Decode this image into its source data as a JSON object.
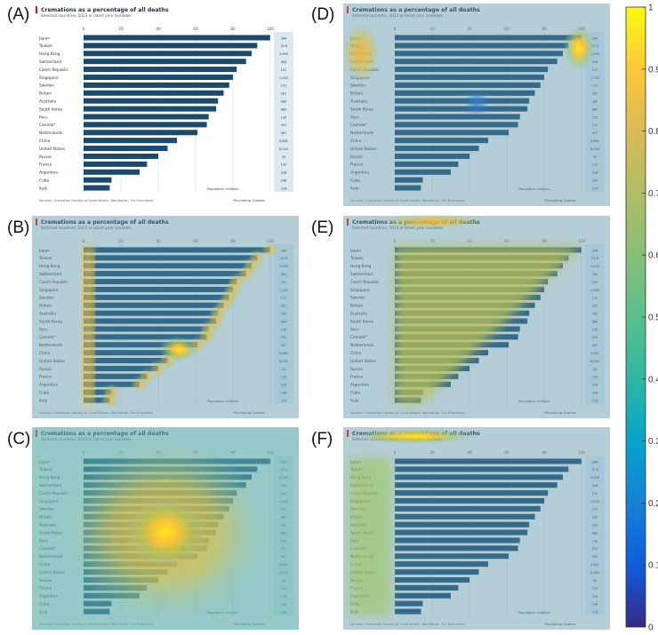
{
  "panels": [
    {
      "label": "(A)",
      "heatmap": "none"
    },
    {
      "label": "(B)",
      "heatmap": "left-column-and-bar-ends"
    },
    {
      "label": "(C)",
      "heatmap": "center-blob"
    },
    {
      "label": "(D)",
      "heatmap": "top-corners"
    },
    {
      "label": "(E)",
      "heatmap": "diagonal-triangle"
    },
    {
      "label": "(F)",
      "heatmap": "title-and-labels"
    }
  ],
  "chart_data": {
    "type": "bar",
    "title": "Cremations as a percentage of all deaths",
    "subtitle": "Selected countries, 2013 or latest year available",
    "categories": [
      "Japan",
      "Taiwan",
      "Hong Kong",
      "Switzerland",
      "Czech Republic",
      "Singapore",
      "Sweden",
      "Britain",
      "Australia",
      "South Korea",
      "Peru",
      "Canada*",
      "Netherlands",
      "China",
      "United States",
      "Russia",
      "France",
      "Argentina",
      "Cuba",
      "Italy"
    ],
    "values": [
      99.9,
      93,
      90,
      87,
      82,
      80,
      78,
      75,
      72,
      71,
      67,
      66,
      61,
      50,
      45,
      40,
      34,
      30,
      15,
      14
    ],
    "pop_labels": [
      "264",
      "15.6",
      "3,999",
      "344",
      "101",
      "1,000",
      "131",
      "287",
      "285",
      "680",
      "135",
      "291",
      "407",
      "9,862",
      "6,000",
      "34",
      "120",
      "318",
      "248",
      "216"
    ],
    "xlim": [
      0,
      100
    ],
    "xticks": [
      0,
      20,
      40,
      60,
      80,
      100
    ],
    "pop_header": "Population, millions",
    "footnote": "*Excluding Quebec",
    "source": "Sources: Cremation Society of Great Britain; Worldatlas; The Economist",
    "bar_color": "#1a4b6e",
    "accent_color": "#e3120b"
  },
  "colorbar": {
    "ticks": [
      "0",
      "0.1",
      "0.2",
      "0.3",
      "0.4",
      "0.5",
      "0.6",
      "0.7",
      "0.8",
      "0.9",
      "1"
    ],
    "colormap": "parula"
  }
}
